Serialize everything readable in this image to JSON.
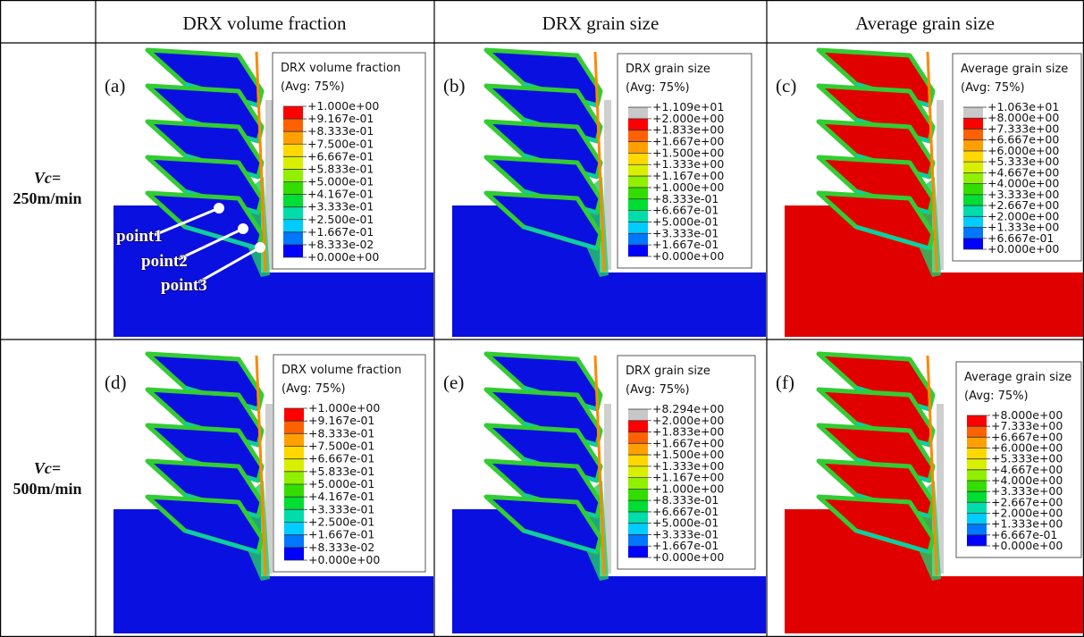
{
  "columns": [
    "DRX volume fraction",
    "DRX grain size",
    "Average grain size"
  ],
  "rows": [
    {
      "var": "Vc=",
      "speed": "250m/min"
    },
    {
      "var": "Vc=",
      "speed": "500m/min"
    }
  ],
  "panels": [
    {
      "label": "(a)",
      "legend_title": "DRX volume fraction",
      "avg": "(Avg: 75%)",
      "levels": [
        "+1.000e+00",
        "+9.167e-01",
        "+8.333e-01",
        "+7.500e-01",
        "+6.667e-01",
        "+5.833e-01",
        "+5.000e-01",
        "+4.167e-01",
        "+3.333e-01",
        "+2.500e-01",
        "+1.667e-01",
        "+8.333e-02",
        "+0.000e+00"
      ]
    },
    {
      "label": "(b)",
      "legend_title": "DRX grain size",
      "avg": "(Avg: 75%)",
      "levels": [
        "+1.109e+01",
        "+2.000e+00",
        "+1.833e+00",
        "+1.667e+00",
        "+1.500e+00",
        "+1.333e+00",
        "+1.167e+00",
        "+1.000e+00",
        "+8.333e-01",
        "+6.667e-01",
        "+5.000e-01",
        "+3.333e-01",
        "+1.667e-01",
        "+0.000e+00"
      ]
    },
    {
      "label": "(c)",
      "legend_title": "Average grain size",
      "avg": "(Avg: 75%)",
      "levels": [
        "+1.063e+01",
        "+8.000e+00",
        "+7.333e+00",
        "+6.667e+00",
        "+6.000e+00",
        "+5.333e+00",
        "+4.667e+00",
        "+4.000e+00",
        "+3.333e+00",
        "+2.667e+00",
        "+2.000e+00",
        "+1.333e+00",
        "+6.667e-01",
        "+0.000e+00"
      ]
    },
    {
      "label": "(d)",
      "legend_title": "DRX volume fraction",
      "avg": "(Avg: 75%)",
      "levels": [
        "+1.000e+00",
        "+9.167e-01",
        "+8.333e-01",
        "+7.500e-01",
        "+6.667e-01",
        "+5.833e-01",
        "+5.000e-01",
        "+4.167e-01",
        "+3.333e-01",
        "+2.500e-01",
        "+1.667e-01",
        "+8.333e-02",
        "+0.000e+00"
      ]
    },
    {
      "label": "(e)",
      "legend_title": "DRX grain size",
      "avg": "(Avg: 75%)",
      "levels": [
        "+8.294e+00",
        "+2.000e+00",
        "+1.833e+00",
        "+1.667e+00",
        "+1.500e+00",
        "+1.333e+00",
        "+1.167e+00",
        "+1.000e+00",
        "+8.333e-01",
        "+6.667e-01",
        "+5.000e-01",
        "+3.333e-01",
        "+1.667e-01",
        "+0.000e+00"
      ]
    },
    {
      "label": "(f)",
      "legend_title": "Average grain size",
      "avg": "(Avg: 75%)",
      "levels": [
        "+8.000e+00",
        "+7.333e+00",
        "+6.667e+00",
        "+6.000e+00",
        "+5.333e+00",
        "+4.667e+00",
        "+4.000e+00",
        "+3.333e+00",
        "+2.667e+00",
        "+2.000e+00",
        "+1.333e+00",
        "+6.667e-01",
        "+0.000e+00"
      ]
    }
  ],
  "points": [
    "point1",
    "point2",
    "point3"
  ]
}
